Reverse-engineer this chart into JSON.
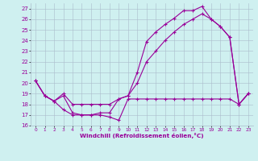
{
  "bg_color": "#cff0f0",
  "line_color": "#990099",
  "grid_color": "#aabbcc",
  "xlabel": "Windchill (Refroidissement éolien,°C)",
  "xlim": [
    -0.5,
    23.5
  ],
  "ylim": [
    16,
    27.5
  ],
  "yticks": [
    16,
    17,
    18,
    19,
    20,
    21,
    22,
    23,
    24,
    25,
    26,
    27
  ],
  "xticks": [
    0,
    1,
    2,
    3,
    4,
    5,
    6,
    7,
    8,
    9,
    10,
    11,
    12,
    13,
    14,
    15,
    16,
    17,
    18,
    19,
    20,
    21,
    22,
    23
  ],
  "line1_x": [
    0,
    1,
    2,
    3,
    4,
    5,
    6,
    7,
    8,
    9,
    10,
    11,
    12,
    13,
    14,
    15,
    16,
    17,
    18,
    19,
    20,
    21,
    22,
    23
  ],
  "line1_y": [
    20.2,
    18.8,
    18.3,
    18.8,
    17.2,
    17.0,
    17.0,
    17.2,
    17.2,
    18.5,
    18.8,
    21.0,
    23.9,
    24.8,
    25.5,
    26.1,
    26.8,
    26.8,
    27.2,
    26.0,
    25.3,
    24.3,
    18.0,
    19.0
  ],
  "line2_x": [
    0,
    1,
    2,
    3,
    4,
    5,
    6,
    7,
    8,
    9,
    10,
    11,
    12,
    13,
    14,
    15,
    16,
    17,
    18,
    19,
    20,
    21,
    22,
    23
  ],
  "line2_y": [
    20.2,
    18.8,
    18.3,
    19.0,
    18.0,
    18.0,
    18.0,
    18.0,
    18.0,
    18.5,
    18.8,
    20.0,
    22.0,
    23.0,
    24.0,
    24.8,
    25.5,
    26.0,
    26.5,
    26.0,
    25.3,
    24.3,
    18.0,
    19.0
  ],
  "line3_x": [
    0,
    1,
    2,
    3,
    4,
    5,
    6,
    7,
    8,
    9,
    10,
    11,
    12,
    13,
    14,
    15,
    16,
    17,
    18,
    19,
    20,
    21,
    22,
    23
  ],
  "line3_y": [
    20.2,
    18.8,
    18.3,
    17.5,
    17.0,
    17.0,
    17.0,
    17.0,
    16.8,
    16.5,
    18.5,
    18.5,
    18.5,
    18.5,
    18.5,
    18.5,
    18.5,
    18.5,
    18.5,
    18.5,
    18.5,
    18.5,
    18.0,
    19.0
  ]
}
